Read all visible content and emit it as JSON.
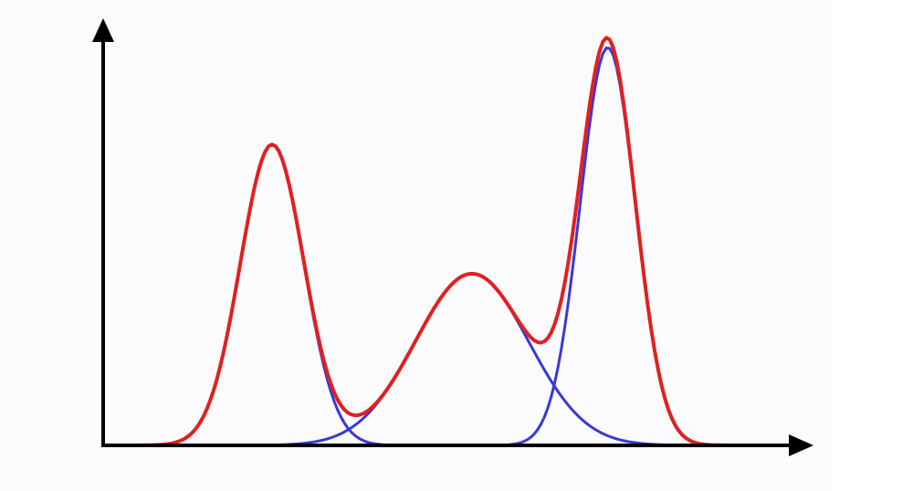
{
  "chart_data": {
    "type": "line",
    "title": "",
    "xlabel": "",
    "ylabel": "",
    "x_range": [
      0,
      100
    ],
    "y_range": [
      0,
      1.0
    ],
    "grid": false,
    "legend": "none",
    "x_sample_step": 0.5,
    "components": [
      {
        "mean": 24.5,
        "sd": 4.6,
        "amplitude": 0.716,
        "color": "#3838d8"
      },
      {
        "mean": 53.5,
        "sd": 8.2,
        "amplitude": 0.409,
        "color": "#3838d8"
      },
      {
        "mean": 73.2,
        "sd": 4.0,
        "amplitude": 0.948,
        "color": "#3838d8"
      }
    ],
    "mixture": {
      "color": "#e02020"
    },
    "axis_color": "#000000"
  }
}
